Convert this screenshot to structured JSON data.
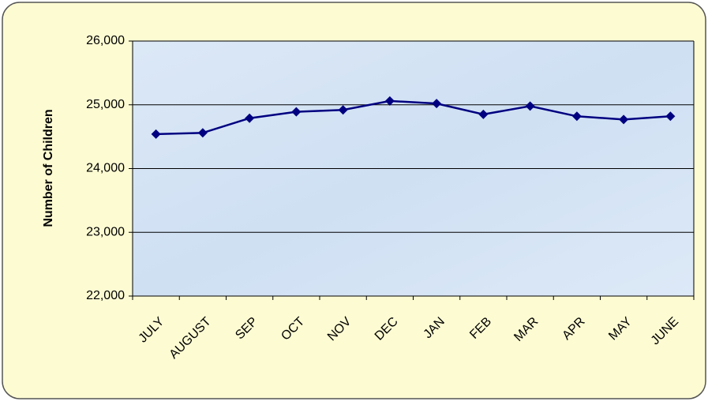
{
  "chart_data": {
    "type": "line",
    "y_label": "Number of Children",
    "categories": [
      "JULY",
      "AUGUST",
      "SEP",
      "OCT",
      "NOV",
      "DEC",
      "JAN",
      "FEB",
      "MAR",
      "APR",
      "MAY",
      "JUNE"
    ],
    "values": [
      24540,
      24560,
      24790,
      24890,
      24920,
      25060,
      25020,
      24850,
      24980,
      24820,
      24770,
      24820
    ],
    "color": "#000080",
    "ylim": [
      22000,
      26000
    ],
    "yticks": [
      {
        "value": 22000,
        "label": "22,000"
      },
      {
        "value": 23000,
        "label": "23,000"
      },
      {
        "value": 24000,
        "label": "24,000"
      },
      {
        "value": 25000,
        "label": "25,000"
      },
      {
        "value": 26000,
        "label": "26,000"
      }
    ],
    "grid": true
  }
}
